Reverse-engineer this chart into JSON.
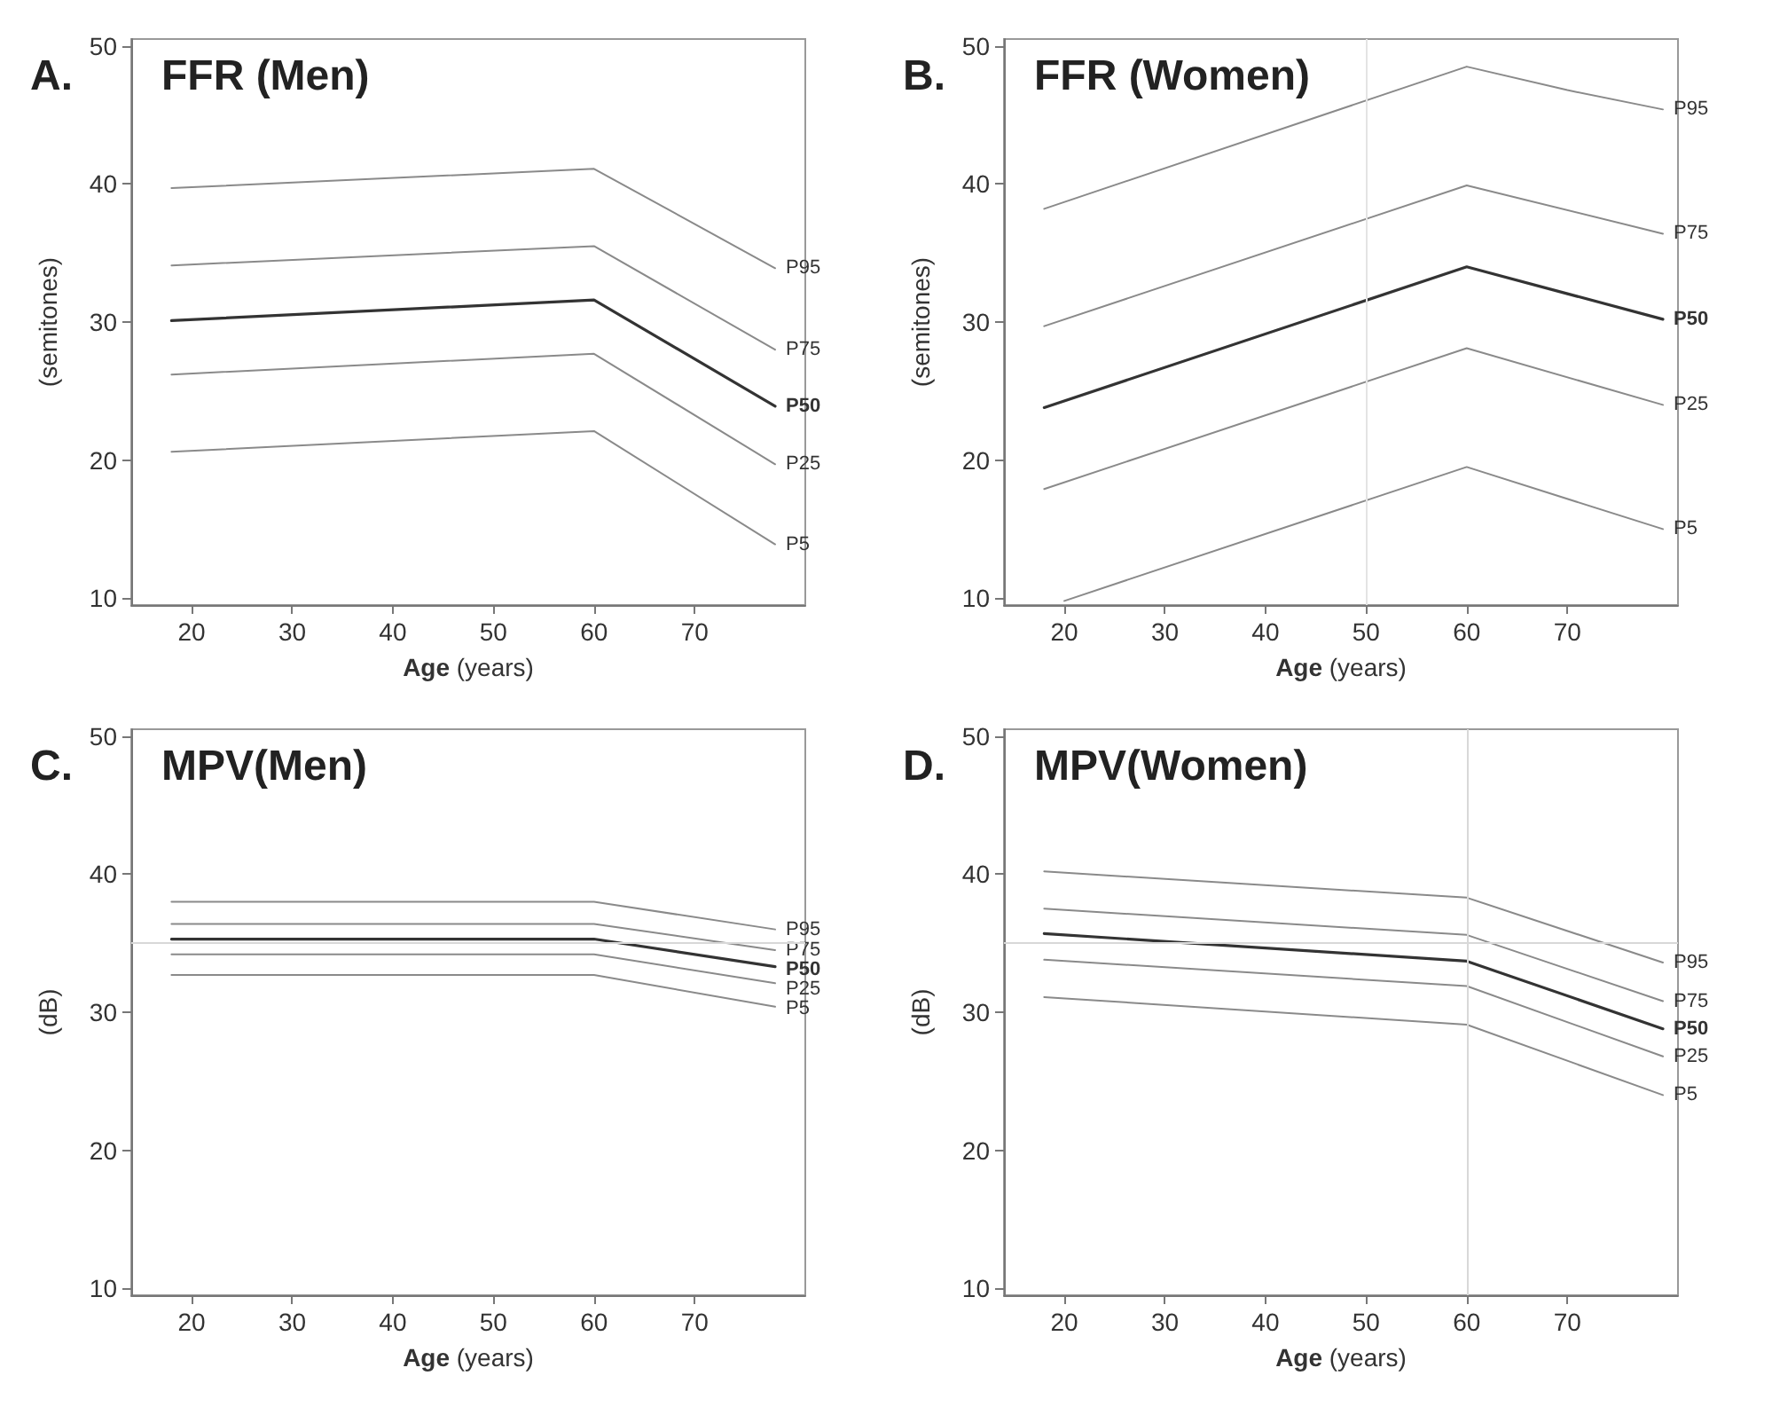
{
  "chart_data": [
    {
      "type": "line",
      "title": "A. FFR (Men)",
      "xlabel": "Age (years)",
      "ylabel": "(semitones)",
      "xlim": [
        14,
        81
      ],
      "xticks": [
        20,
        30,
        40,
        50,
        60,
        70
      ],
      "ylim": [
        9.5,
        50.5
      ],
      "yticks": [
        10,
        20,
        30,
        40,
        50
      ],
      "grid": false,
      "legend": false,
      "marker": "none",
      "line_style": "solid",
      "series": [
        {
          "name": "P95",
          "color": "#8a8a8a",
          "x": [
            18,
            60,
            78
          ],
          "values": [
            39.7,
            41.1,
            33.9
          ]
        },
        {
          "name": "P75",
          "color": "#8a8a8a",
          "x": [
            18,
            60,
            78
          ],
          "values": [
            34.1,
            35.5,
            28.0
          ]
        },
        {
          "name": "P50",
          "color": "#333333",
          "x": [
            18,
            60,
            78
          ],
          "values": [
            30.1,
            31.6,
            23.9
          ]
        },
        {
          "name": "P25",
          "color": "#8a8a8a",
          "x": [
            18,
            60,
            78
          ],
          "values": [
            26.2,
            27.7,
            19.7
          ]
        },
        {
          "name": "P5",
          "color": "#8a8a8a",
          "x": [
            18,
            60,
            78
          ],
          "values": [
            20.6,
            22.1,
            13.9
          ]
        }
      ]
    },
    {
      "type": "line",
      "title": "B. FFR (Women)",
      "xlabel": "Age (years)",
      "ylabel": "(semitones)",
      "xlim": [
        14,
        81
      ],
      "xticks": [
        20,
        30,
        40,
        50,
        60,
        70
      ],
      "ylim": [
        9.5,
        50.5
      ],
      "yticks": [
        10,
        20,
        30,
        40,
        50
      ],
      "grid": false,
      "legend": false,
      "marker": "none",
      "line_style": "solid",
      "ref_lines": [
        {
          "axis": "x",
          "value": 50,
          "color": "#e4e4e4"
        }
      ],
      "series": [
        {
          "name": "P95",
          "color": "#8a8a8a",
          "x": [
            18,
            60,
            70,
            79.5
          ],
          "values": [
            38.2,
            48.5,
            46.8,
            45.4
          ]
        },
        {
          "name": "P75",
          "color": "#8a8a8a",
          "x": [
            18,
            60,
            79.5
          ],
          "values": [
            29.7,
            39.9,
            36.4
          ]
        },
        {
          "name": "P50",
          "color": "#333333",
          "x": [
            18,
            60,
            79.5
          ],
          "values": [
            23.8,
            34.0,
            30.2
          ]
        },
        {
          "name": "P25",
          "color": "#8a8a8a",
          "x": [
            18,
            60,
            79.5
          ],
          "values": [
            17.9,
            28.1,
            24.0
          ]
        },
        {
          "name": "P5",
          "color": "#8a8a8a",
          "x": [
            20,
            60,
            79.5
          ],
          "values": [
            9.8,
            19.5,
            15.0
          ]
        }
      ]
    },
    {
      "type": "line",
      "title": "C. MPV(Men)",
      "xlabel": "Age (years)",
      "ylabel": "(dB)",
      "xlim": [
        14,
        81
      ],
      "xticks": [
        20,
        30,
        40,
        50,
        60,
        70
      ],
      "ylim": [
        9.5,
        50.5
      ],
      "yticks": [
        10,
        20,
        30,
        40,
        50
      ],
      "grid": false,
      "legend": false,
      "marker": "none",
      "line_style": "solid",
      "ref_lines": [
        {
          "axis": "y",
          "value": 35,
          "color": "#d8d8d8"
        }
      ],
      "series": [
        {
          "name": "P95",
          "color": "#8a8a8a",
          "x": [
            18,
            60,
            78
          ],
          "values": [
            38.0,
            38.0,
            36.0
          ]
        },
        {
          "name": "P75",
          "color": "#8a8a8a",
          "x": [
            18,
            60,
            78
          ],
          "values": [
            36.4,
            36.4,
            34.5
          ]
        },
        {
          "name": "P50",
          "color": "#333333",
          "x": [
            18,
            60,
            78
          ],
          "values": [
            35.3,
            35.3,
            33.3
          ]
        },
        {
          "name": "P25",
          "color": "#8a8a8a",
          "x": [
            18,
            60,
            78
          ],
          "values": [
            34.2,
            34.2,
            32.1
          ]
        },
        {
          "name": "P5",
          "color": "#8a8a8a",
          "x": [
            18,
            60,
            78
          ],
          "values": [
            32.7,
            32.7,
            30.4
          ]
        }
      ]
    },
    {
      "type": "line",
      "title": "D. MPV(Women)",
      "xlabel": "Age (years)",
      "ylabel": "(dB)",
      "xlim": [
        14,
        81
      ],
      "xticks": [
        20,
        30,
        40,
        50,
        60,
        70
      ],
      "ylim": [
        9.5,
        50.5
      ],
      "yticks": [
        10,
        20,
        30,
        40,
        50
      ],
      "grid": false,
      "legend": false,
      "marker": "none",
      "line_style": "solid",
      "ref_lines": [
        {
          "axis": "y",
          "value": 35,
          "color": "#d8d8d8"
        },
        {
          "axis": "x",
          "value": 60,
          "color": "#d8d8d8"
        }
      ],
      "series": [
        {
          "name": "P95",
          "color": "#8a8a8a",
          "x": [
            18,
            60,
            79.5
          ],
          "values": [
            40.2,
            38.3,
            33.6
          ]
        },
        {
          "name": "P75",
          "color": "#8a8a8a",
          "x": [
            18,
            60,
            79.5
          ],
          "values": [
            37.5,
            35.6,
            30.8
          ]
        },
        {
          "name": "P50",
          "color": "#333333",
          "x": [
            18,
            60,
            79.5
          ],
          "values": [
            35.7,
            33.7,
            28.8
          ]
        },
        {
          "name": "P25",
          "color": "#8a8a8a",
          "x": [
            18,
            60,
            79.5
          ],
          "values": [
            33.8,
            31.9,
            26.8
          ]
        },
        {
          "name": "P5",
          "color": "#8a8a8a",
          "x": [
            18,
            60,
            79.5
          ],
          "values": [
            31.1,
            29.1,
            24.0
          ]
        }
      ]
    }
  ]
}
